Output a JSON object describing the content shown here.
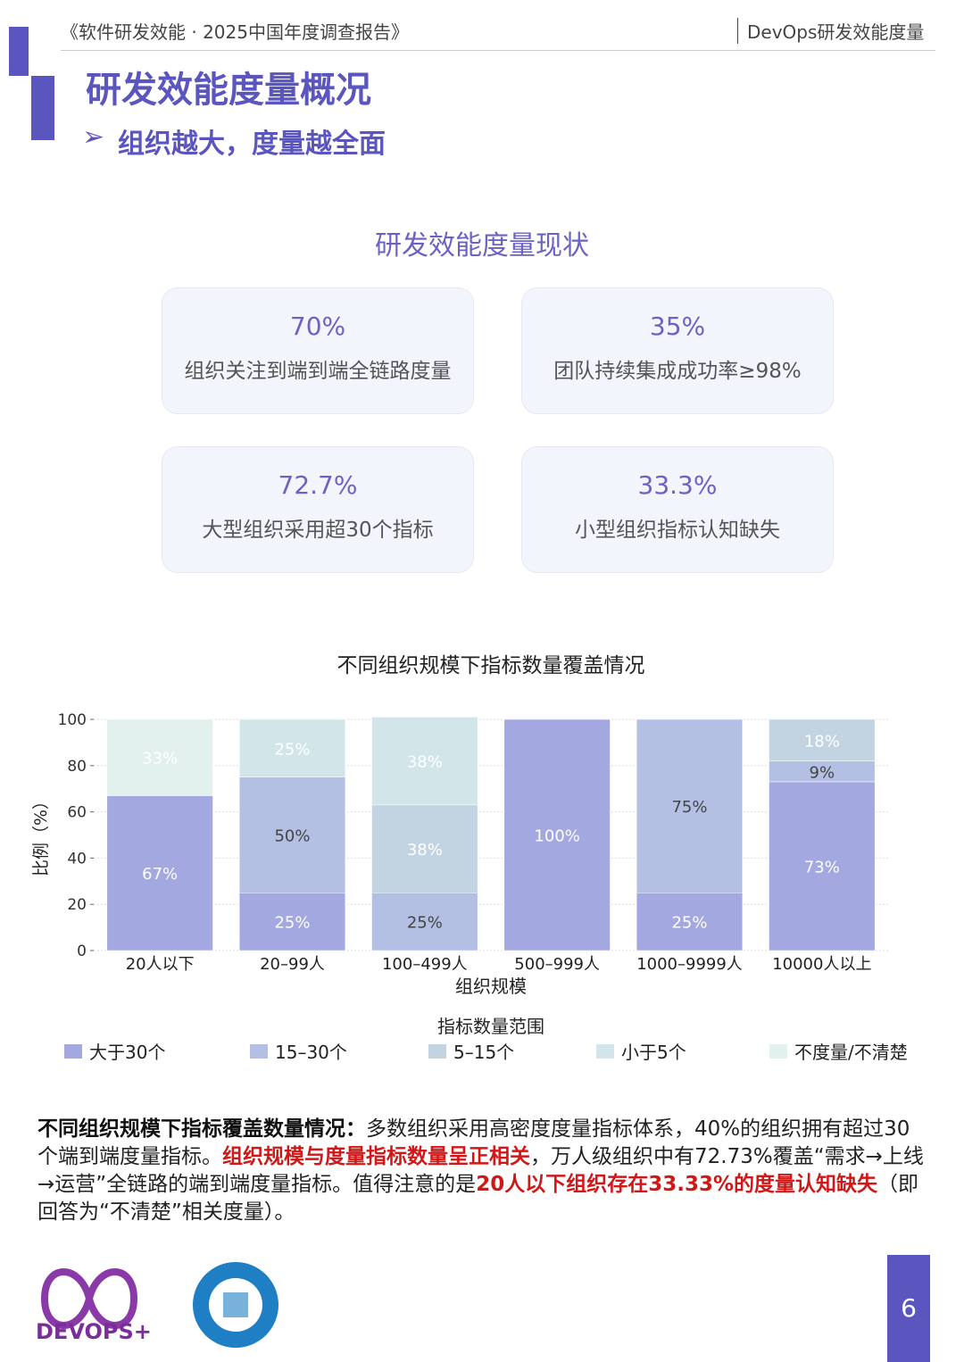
{
  "header": {
    "report": "《软件研发效能 · 2025中国年度调查报告》",
    "section": "DevOps研发效能度量"
  },
  "title": "研发效能度量概况",
  "subtitle": "组织越大，度量越全面",
  "section_title": "研发效能度量现状",
  "cards": [
    {
      "value": "70%",
      "label": "组织关注到端到端全链路度量"
    },
    {
      "value": "35%",
      "label": "团队持续集成成功率≥98%"
    },
    {
      "value": "72.7%",
      "label": "大型组织采用超30个指标"
    },
    {
      "value": "33.3%",
      "label": "小型组织指标认知缺失"
    }
  ],
  "chart_data": {
    "type": "stacked_bar",
    "title": "不同组织规模下指标数量覆盖情况",
    "x_label": "组织规模",
    "y_label": "比例（%）",
    "legend_title": "指标数量范围",
    "categories": [
      "20人以下",
      "20–99人",
      "100–499人",
      "500–999人",
      "1000–9999人",
      "10000人以上"
    ],
    "ylim": [
      0,
      100
    ],
    "yticks": [
      0,
      20,
      40,
      60,
      80,
      100
    ],
    "grid": true,
    "series": [
      {
        "name": "大于30个",
        "color": "#a3a8e0",
        "values": [
          67,
          25,
          0,
          100,
          25,
          73
        ],
        "value_labels": [
          "67%",
          "25%",
          null,
          "100%",
          "25%",
          "73%"
        ]
      },
      {
        "name": "15–30个",
        "color": "#b3c0e3",
        "values": [
          0,
          50,
          25,
          0,
          75,
          9
        ],
        "value_labels": [
          null,
          "50%",
          "25%",
          null,
          "75%",
          "9%"
        ]
      },
      {
        "name": "5–15个",
        "color": "#c2d4e2",
        "values": [
          0,
          0,
          38,
          0,
          0,
          18
        ],
        "value_labels": [
          null,
          null,
          "38%",
          null,
          null,
          "18%"
        ]
      },
      {
        "name": "小于5个",
        "color": "#d2e6ea",
        "values": [
          0,
          25,
          38,
          0,
          0,
          0
        ],
        "value_labels": [
          null,
          "25%",
          "38%",
          null,
          null,
          null
        ]
      },
      {
        "name": "不度量/不清楚",
        "color": "#e2f1ee",
        "values": [
          33,
          0,
          0,
          0,
          0,
          0
        ],
        "value_labels": [
          "33%",
          null,
          null,
          null,
          null,
          null
        ]
      }
    ]
  },
  "paragraph": [
    {
      "text": "不同组织规模下指标覆盖数量情况：",
      "style": "bold"
    },
    {
      "text": "多数组织采用高密度度量指标体系，40%的组织拥有超过30个端到端度量指标。",
      "style": "normal"
    },
    {
      "text": "组织规模与度量指标数量呈正相关",
      "style": "red"
    },
    {
      "text": "，万人级组织中有72.73%覆盖“需求→上线→运营”全链路的端到端度量指标。值得注意的是",
      "style": "normal"
    },
    {
      "text": "20人以下组织存在33.33%的度量认知缺失",
      "style": "red"
    },
    {
      "text": "（即回答为“不清楚”相关度量）。",
      "style": "normal"
    }
  ],
  "footer": {
    "logo": "DEVOPS+",
    "page": "6"
  }
}
